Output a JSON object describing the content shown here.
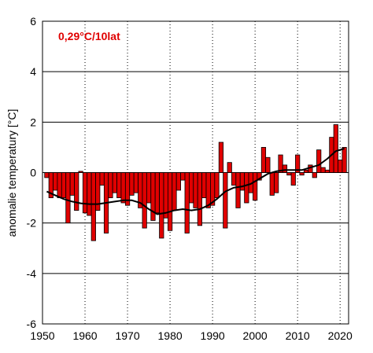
{
  "chart_data": {
    "type": "bar",
    "annotation": "0,29°C/10lat",
    "ylabel": "anomalie temperatury [°C]",
    "xlim": [
      1950,
      2022
    ],
    "ylim": [
      -6,
      6
    ],
    "x_ticks": [
      1950,
      1960,
      1970,
      1980,
      1990,
      2000,
      2010,
      2020
    ],
    "y_ticks": [
      -6,
      -4,
      -2,
      0,
      2,
      4,
      6
    ],
    "x_gridlines": "dotted",
    "y_gridlines": "solid",
    "colors": {
      "bar_fill": "#e00000",
      "bar_stroke": "#000000",
      "smooth_line": "#000000",
      "annotation": "#e00000"
    },
    "series": [
      {
        "type": "bar",
        "x": [
          1951,
          1952,
          1953,
          1954,
          1955,
          1956,
          1957,
          1958,
          1959,
          1960,
          1961,
          1962,
          1963,
          1964,
          1965,
          1966,
          1967,
          1968,
          1969,
          1970,
          1971,
          1972,
          1973,
          1974,
          1975,
          1976,
          1977,
          1978,
          1979,
          1980,
          1981,
          1982,
          1983,
          1984,
          1985,
          1986,
          1987,
          1988,
          1989,
          1990,
          1991,
          1992,
          1993,
          1994,
          1995,
          1996,
          1997,
          1998,
          1999,
          2000,
          2001,
          2002,
          2003,
          2004,
          2005,
          2006,
          2007,
          2008,
          2009,
          2010,
          2011,
          2012,
          2013,
          2014,
          2015,
          2016,
          2017,
          2018,
          2019,
          2020,
          2021
        ],
        "values": [
          -0.2,
          -1.0,
          -0.7,
          -1.0,
          -1.0,
          -2.0,
          -0.9,
          -1.5,
          0.05,
          -1.6,
          -1.7,
          -2.7,
          -1.5,
          -0.5,
          -2.4,
          -1.0,
          -0.8,
          -1.0,
          -1.2,
          -1.3,
          -0.9,
          -0.8,
          -1.4,
          -2.2,
          -1.2,
          -1.9,
          -1.6,
          -2.6,
          -1.8,
          -2.3,
          -1.5,
          -0.7,
          -0.3,
          -2.4,
          -1.2,
          -1.4,
          -2.1,
          -1.0,
          -1.4,
          -1.3,
          -1.0,
          1.2,
          -2.2,
          0.4,
          -0.5,
          -1.4,
          -0.7,
          -1.2,
          -0.8,
          -1.1,
          -0.3,
          1.0,
          0.6,
          -0.9,
          -0.8,
          0.7,
          0.3,
          -0.1,
          -0.5,
          0.7,
          -0.1,
          0.1,
          0.3,
          -0.2,
          0.9,
          0.2,
          0.1,
          1.4,
          1.9,
          0.5,
          1.0
        ]
      },
      {
        "type": "line",
        "x": [
          1951,
          1953,
          1955,
          1957,
          1959,
          1961,
          1963,
          1965,
          1967,
          1969,
          1971,
          1973,
          1975,
          1977,
          1979,
          1981,
          1983,
          1985,
          1987,
          1989,
          1991,
          1993,
          1995,
          1997,
          1999,
          2001,
          2003,
          2005,
          2007,
          2009,
          2011,
          2013,
          2015,
          2017,
          2019,
          2021
        ],
        "values": [
          -0.75,
          -0.9,
          -1.05,
          -1.15,
          -1.22,
          -1.25,
          -1.25,
          -1.2,
          -1.15,
          -1.1,
          -1.1,
          -1.2,
          -1.45,
          -1.65,
          -1.6,
          -1.5,
          -1.45,
          -1.5,
          -1.45,
          -1.3,
          -1.05,
          -0.75,
          -0.6,
          -0.55,
          -0.45,
          -0.25,
          -0.05,
          0.05,
          0.1,
          0.1,
          0.1,
          0.2,
          0.3,
          0.55,
          0.85,
          0.95
        ]
      }
    ]
  }
}
